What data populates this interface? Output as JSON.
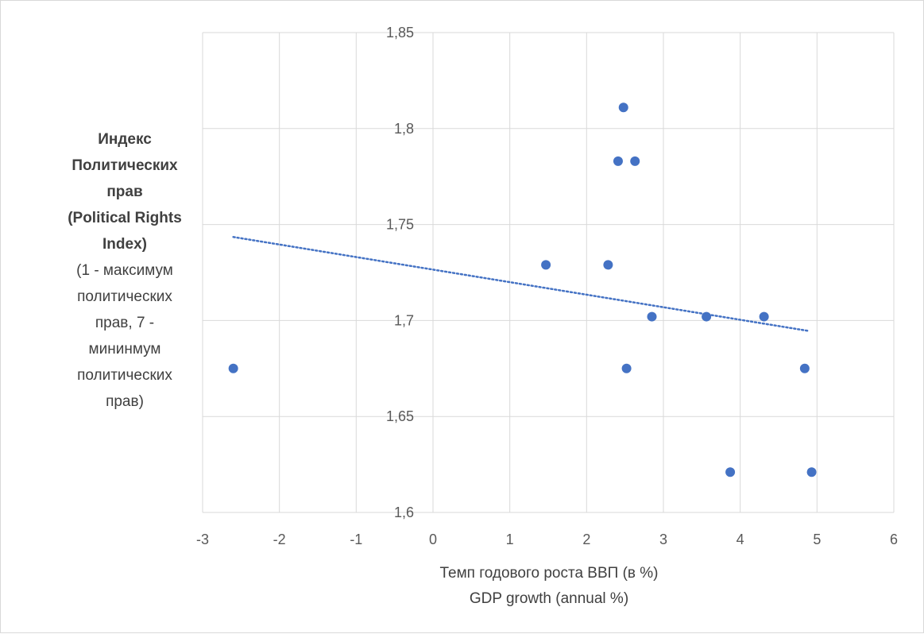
{
  "chart_data": {
    "type": "scatter",
    "xlabel_lines": [
      "Темп годового роста ВВП (в %)",
      "GDP growth (annual %)"
    ],
    "ylabel_bold_lines": [
      "Индекс",
      "Политических",
      "прав",
      "(Political Rights",
      "Index)"
    ],
    "ylabel_normal_lines": [
      "(1 - максимум",
      "политических",
      "прав, 7 -",
      "мининмум",
      "политических",
      "прав)"
    ],
    "xlim": [
      -3,
      6
    ],
    "ylim": [
      1.6,
      1.85
    ],
    "x_ticks": [
      "-3",
      "-2",
      "-1",
      "0",
      "1",
      "2",
      "3",
      "4",
      "5",
      "6"
    ],
    "y_ticks": [
      "1,6",
      "1,65",
      "1,7",
      "1,75",
      "1,8",
      "1,85"
    ],
    "grid": true,
    "point_color": "#4472c4",
    "trendline_color": "#4472c4",
    "points": [
      {
        "x": -2.6,
        "y": 1.675
      },
      {
        "x": 1.47,
        "y": 1.729
      },
      {
        "x": 2.28,
        "y": 1.729
      },
      {
        "x": 2.41,
        "y": 1.783
      },
      {
        "x": 2.48,
        "y": 1.811
      },
      {
        "x": 2.52,
        "y": 1.675
      },
      {
        "x": 2.63,
        "y": 1.783
      },
      {
        "x": 2.85,
        "y": 1.702
      },
      {
        "x": 3.56,
        "y": 1.702
      },
      {
        "x": 3.87,
        "y": 1.621
      },
      {
        "x": 4.31,
        "y": 1.702
      },
      {
        "x": 4.84,
        "y": 1.675
      },
      {
        "x": 4.93,
        "y": 1.621
      }
    ],
    "trendline": {
      "type": "linear",
      "x": [
        -2.6,
        4.9
      ],
      "y": [
        1.7435,
        1.6945
      ]
    }
  }
}
